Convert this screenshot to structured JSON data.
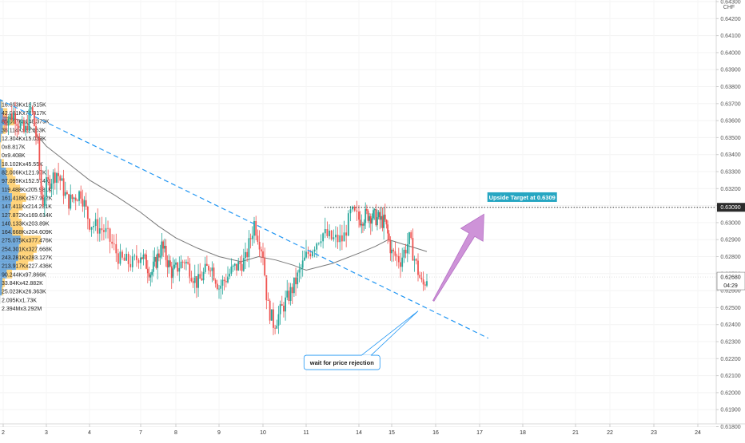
{
  "chart_data": {
    "type": "candlestick",
    "instrument_currency": "CHF",
    "y_axis": {
      "min": 0.618,
      "max": 0.643,
      "ticks": [
        "0.64300",
        "0.64200",
        "0.64100",
        "0.64000",
        "0.63900",
        "0.63800",
        "0.63700",
        "0.63600",
        "0.63500",
        "0.63400",
        "0.63300",
        "0.63200",
        "0.63100",
        "0.63000",
        "0.62900",
        "0.62800",
        "0.62700",
        "0.62600",
        "0.62500",
        "0.62400",
        "0.62300",
        "0.62200",
        "0.62100",
        "0.62000",
        "0.61900",
        "0.61800"
      ]
    },
    "x_axis": {
      "labels": [
        {
          "text": "2",
          "x": 0
        },
        {
          "text": "3",
          "x": 1
        },
        {
          "text": "4",
          "x": 2
        },
        {
          "text": "7",
          "x": 3
        },
        {
          "text": "8",
          "x": 4
        },
        {
          "text": "9",
          "x": 5
        },
        {
          "text": "10",
          "x": 6
        },
        {
          "text": "11",
          "x": 7
        },
        {
          "text": "14",
          "x": 8
        },
        {
          "text": "15",
          "x": 9
        },
        {
          "text": "16",
          "x": 10
        },
        {
          "text": "17",
          "x": 11
        },
        {
          "text": "18",
          "x": 12
        },
        {
          "text": "21",
          "x": 13
        },
        {
          "text": "22",
          "x": 14
        },
        {
          "text": "23",
          "x": 15
        },
        {
          "text": "24",
          "x": 16
        }
      ]
    },
    "price_labels": {
      "resistance": "0.63090",
      "current": "0.62680",
      "countdown": "04:29"
    },
    "levels": {
      "resistance": 0.6309,
      "current": 0.6268
    },
    "price_path": [
      [
        0.0,
        0.636
      ],
      [
        0.25,
        0.6364
      ],
      [
        0.5,
        0.6352
      ],
      [
        0.65,
        0.6368
      ],
      [
        0.8,
        0.6345
      ],
      [
        0.9,
        0.631
      ],
      [
        1.0,
        0.6322
      ],
      [
        1.25,
        0.633
      ],
      [
        1.5,
        0.6312
      ],
      [
        1.8,
        0.6318
      ],
      [
        2.0,
        0.63
      ],
      [
        2.3,
        0.6295
      ],
      [
        2.6,
        0.6278
      ],
      [
        2.85,
        0.6276
      ],
      [
        3.0,
        0.6282
      ],
      [
        3.3,
        0.627
      ],
      [
        3.6,
        0.6286
      ],
      [
        3.9,
        0.627
      ],
      [
        4.2,
        0.6278
      ],
      [
        4.5,
        0.6264
      ],
      [
        4.8,
        0.6276
      ],
      [
        5.0,
        0.6262
      ],
      [
        5.3,
        0.6272
      ],
      [
        5.6,
        0.6278
      ],
      [
        5.8,
        0.63
      ],
      [
        6.0,
        0.6282
      ],
      [
        6.1,
        0.6252
      ],
      [
        6.25,
        0.624
      ],
      [
        6.45,
        0.625
      ],
      [
        6.7,
        0.6262
      ],
      [
        7.0,
        0.628
      ],
      [
        7.3,
        0.6294
      ],
      [
        7.5,
        0.629
      ],
      [
        7.7,
        0.629
      ],
      [
        7.85,
        0.6306
      ],
      [
        8.0,
        0.6302
      ],
      [
        8.3,
        0.6305
      ],
      [
        8.5,
        0.6303
      ],
      [
        8.8,
        0.63
      ],
      [
        9.0,
        0.6282
      ],
      [
        9.2,
        0.6278
      ],
      [
        9.4,
        0.629
      ],
      [
        9.55,
        0.6276
      ],
      [
        9.7,
        0.6262
      ],
      [
        9.8,
        0.6268
      ]
    ],
    "moving_average": [
      [
        0.0,
        0.6362
      ],
      [
        0.5,
        0.636
      ],
      [
        1.0,
        0.6345
      ],
      [
        1.5,
        0.6335
      ],
      [
        2.0,
        0.6325
      ],
      [
        2.5,
        0.6316
      ],
      [
        3.0,
        0.6306
      ],
      [
        3.5,
        0.6298
      ],
      [
        4.0,
        0.6291
      ],
      [
        4.5,
        0.6285
      ],
      [
        5.0,
        0.628
      ],
      [
        5.5,
        0.6277
      ],
      [
        5.9,
        0.628
      ],
      [
        6.3,
        0.6278
      ],
      [
        6.7,
        0.6275
      ],
      [
        7.0,
        0.6272
      ],
      [
        7.5,
        0.6276
      ],
      [
        8.0,
        0.6282
      ],
      [
        8.5,
        0.6286
      ],
      [
        8.9,
        0.629
      ],
      [
        9.3,
        0.6287
      ],
      [
        9.8,
        0.6283
      ]
    ],
    "trendline": {
      "start": [
        -1.1,
        0.6385
      ],
      "end": [
        11.2,
        0.6232
      ]
    },
    "volume_profile": [
      {
        "label": "16.693Kx18.515K",
        "price": 0.637,
        "buy": 16.693,
        "sell": 18.515
      },
      {
        "label": "42.081Kx77.817K",
        "price": 0.6365,
        "buy": 42.081,
        "sell": 77.817
      },
      {
        "label": "86.097Kx148.379K",
        "price": 0.636,
        "buy": 86.097,
        "sell": 148.379
      },
      {
        "label": "38.114Kx52.853K",
        "price": 0.6355,
        "buy": 38.114,
        "sell": 52.853
      },
      {
        "label": "12.304Kx15.033K",
        "price": 0.635,
        "buy": 12.304,
        "sell": 15.033
      },
      {
        "label": "0x8.817K",
        "price": 0.6345,
        "buy": 0,
        "sell": 8.817
      },
      {
        "label": "0x9.408K",
        "price": 0.634,
        "buy": 0,
        "sell": 9.408
      },
      {
        "label": "18.102Kx45.55K",
        "price": 0.6335,
        "buy": 18.102,
        "sell": 45.55
      },
      {
        "label": "82.006Kx121.97K",
        "price": 0.633,
        "buy": 82.006,
        "sell": 121.97
      },
      {
        "label": "97.095Kx152.574K",
        "price": 0.6325,
        "buy": 97.095,
        "sell": 152.574
      },
      {
        "label": "119.488Kx205.981K",
        "price": 0.632,
        "buy": 119.488,
        "sell": 205.981
      },
      {
        "label": "161.418Kx257.992K",
        "price": 0.6315,
        "buy": 161.418,
        "sell": 257.992
      },
      {
        "label": "147.411Kx214.291K",
        "price": 0.631,
        "buy": 147.411,
        "sell": 214.291
      },
      {
        "label": "127.872Kx169.614K",
        "price": 0.6305,
        "buy": 127.872,
        "sell": 169.614
      },
      {
        "label": "140.133Kx203.89K",
        "price": 0.63,
        "buy": 140.133,
        "sell": 203.89
      },
      {
        "label": "164.668Kx204.609K",
        "price": 0.6295,
        "buy": 164.668,
        "sell": 204.609
      },
      {
        "label": "275.075Kx377.476K",
        "price": 0.629,
        "buy": 275.075,
        "sell": 377.476
      },
      {
        "label": "254.301Kx327.668K",
        "price": 0.6285,
        "buy": 254.301,
        "sell": 327.668
      },
      {
        "label": "243.281Kx283.127K",
        "price": 0.628,
        "buy": 243.281,
        "sell": 283.127
      },
      {
        "label": "213.917Kx227.436K",
        "price": 0.6275,
        "buy": 213.917,
        "sell": 227.436
      },
      {
        "label": "90.244Kx97.866K",
        "price": 0.627,
        "buy": 90.244,
        "sell": 97.866
      },
      {
        "label": "33.84Kx42.882K",
        "price": 0.6265,
        "buy": 33.84,
        "sell": 42.882
      },
      {
        "label": "25.023Kx26.363K",
        "price": 0.626,
        "buy": 25.023,
        "sell": 26.363
      },
      {
        "label": "2.095Kx1.73K",
        "price": 0.6255,
        "buy": 2.095,
        "sell": 1.73
      },
      {
        "label": "2.394Mx3.292M",
        "price": 0.625,
        "buy": 2394,
        "sell": 3292
      }
    ],
    "annotations": {
      "target_label": "Upside Target at 0.6309",
      "callout_label": "wait for price rejection"
    },
    "colors": {
      "up": "#26a69a",
      "down": "#ef5350",
      "trendline": "#2196f3",
      "moving_average": "#787878",
      "arrow": "#ce93d8",
      "target_label_bg": "#26a6c2",
      "callout_border": "#2196f3",
      "volume_buy": "#5b9bd5",
      "volume_sell": "#ffcc66"
    }
  }
}
